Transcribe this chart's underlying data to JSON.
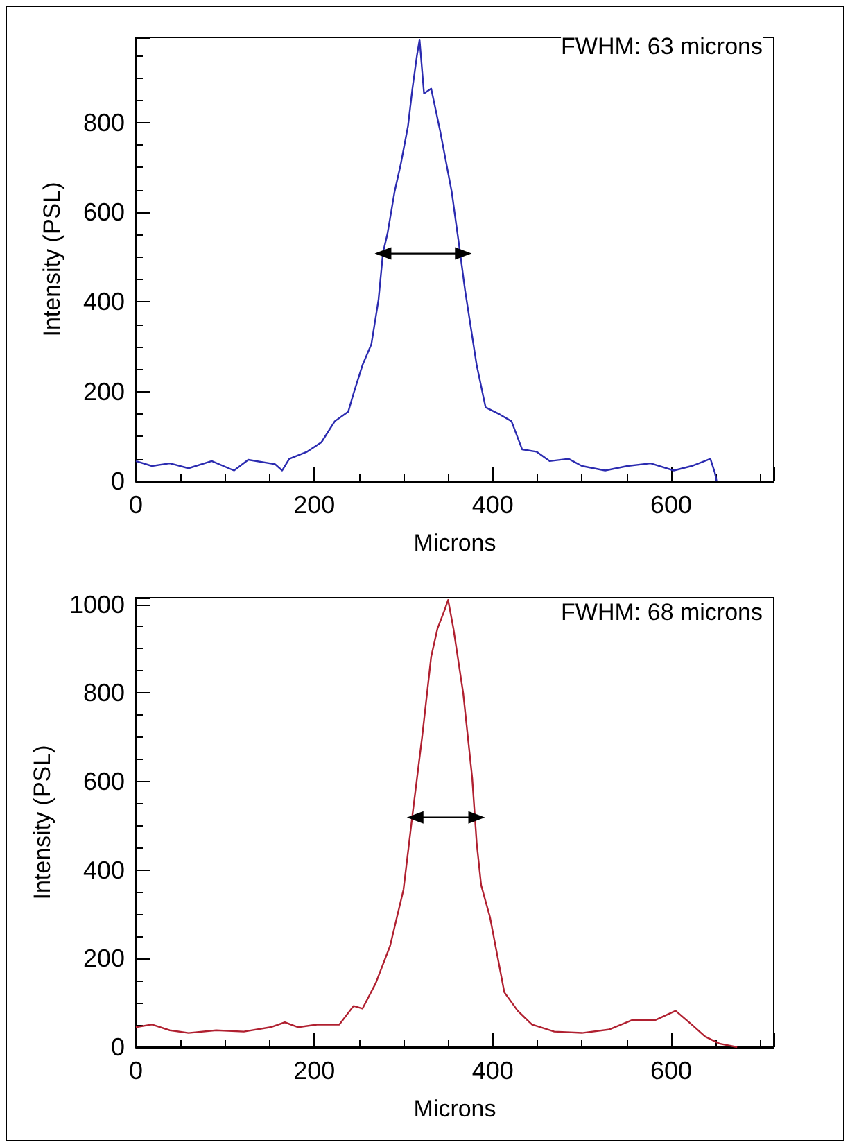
{
  "chart_data": [
    {
      "type": "line",
      "xlabel": "Microns",
      "ylabel": "Intensity (PSL)",
      "annotations": [
        "FWHM: 63 microns"
      ],
      "xlim": [
        0,
        715
      ],
      "xticks": [
        0,
        200,
        400,
        600
      ],
      "ylim": [
        0,
        990
      ],
      "yticks": [
        0,
        200,
        400,
        600,
        800
      ],
      "grid": false,
      "series": [
        {
          "color": "#2b2bb0",
          "x": [
            0,
            18,
            38,
            59,
            85,
            110,
            126,
            156,
            164,
            172,
            192,
            208,
            223,
            238,
            244,
            254,
            264,
            272,
            277,
            282,
            290,
            297,
            305,
            310,
            315,
            318,
            323,
            331,
            341,
            354,
            362,
            369,
            382,
            392,
            408,
            421,
            433,
            449,
            464,
            485,
            500,
            526,
            551,
            577,
            603,
            623,
            644,
            649,
            651
          ],
          "values": [
            45,
            34,
            40,
            29,
            45,
            24,
            48,
            38,
            24,
            50,
            66,
            87,
            134,
            155,
            196,
            259,
            306,
            405,
            510,
            552,
            646,
            708,
            792,
            876,
            949,
            985,
            865,
            876,
            782,
            646,
            531,
            426,
            259,
            165,
            149,
            134,
            71,
            66,
            45,
            50,
            34,
            24,
            34,
            40,
            24,
            34,
            50,
            19,
            0
          ]
        },
        {
          "color": "#000000",
          "marker": "triangle",
          "x": [
            277,
            367
          ],
          "values": [
            508,
            508
          ]
        }
      ]
    },
    {
      "type": "line",
      "xlabel": "Microns",
      "ylabel": "Intensity (PSL)",
      "annotations": [
        "FWHM: 68 microns"
      ],
      "xlim": [
        0,
        715
      ],
      "xticks": [
        0,
        200,
        400,
        600
      ],
      "ylim": [
        0,
        1015
      ],
      "yticks": [
        0,
        200,
        400,
        600,
        800,
        1000
      ],
      "grid": false,
      "series": [
        {
          "color": "#b02030",
          "x": [
            0,
            18,
            38,
            59,
            90,
            121,
            151,
            167,
            182,
            203,
            228,
            244,
            254,
            269,
            285,
            300,
            310,
            321,
            331,
            338,
            346,
            350,
            356,
            367,
            377,
            382,
            387,
            397,
            413,
            428,
            444,
            469,
            500,
            531,
            556,
            582,
            605,
            623,
            638,
            654,
            674
          ],
          "values": [
            45,
            51,
            38,
            32,
            38,
            35,
            45,
            56,
            45,
            51,
            51,
            93,
            87,
            145,
            229,
            356,
            524,
            703,
            882,
            945,
            987,
            1010,
            945,
            798,
            608,
            461,
            366,
            293,
            124,
            82,
            51,
            35,
            32,
            40,
            61,
            61,
            82,
            51,
            24,
            8,
            0
          ]
        },
        {
          "color": "#000000",
          "marker": "triangle",
          "x": [
            313,
            382
          ],
          "values": [
            519,
            519
          ]
        }
      ]
    }
  ]
}
